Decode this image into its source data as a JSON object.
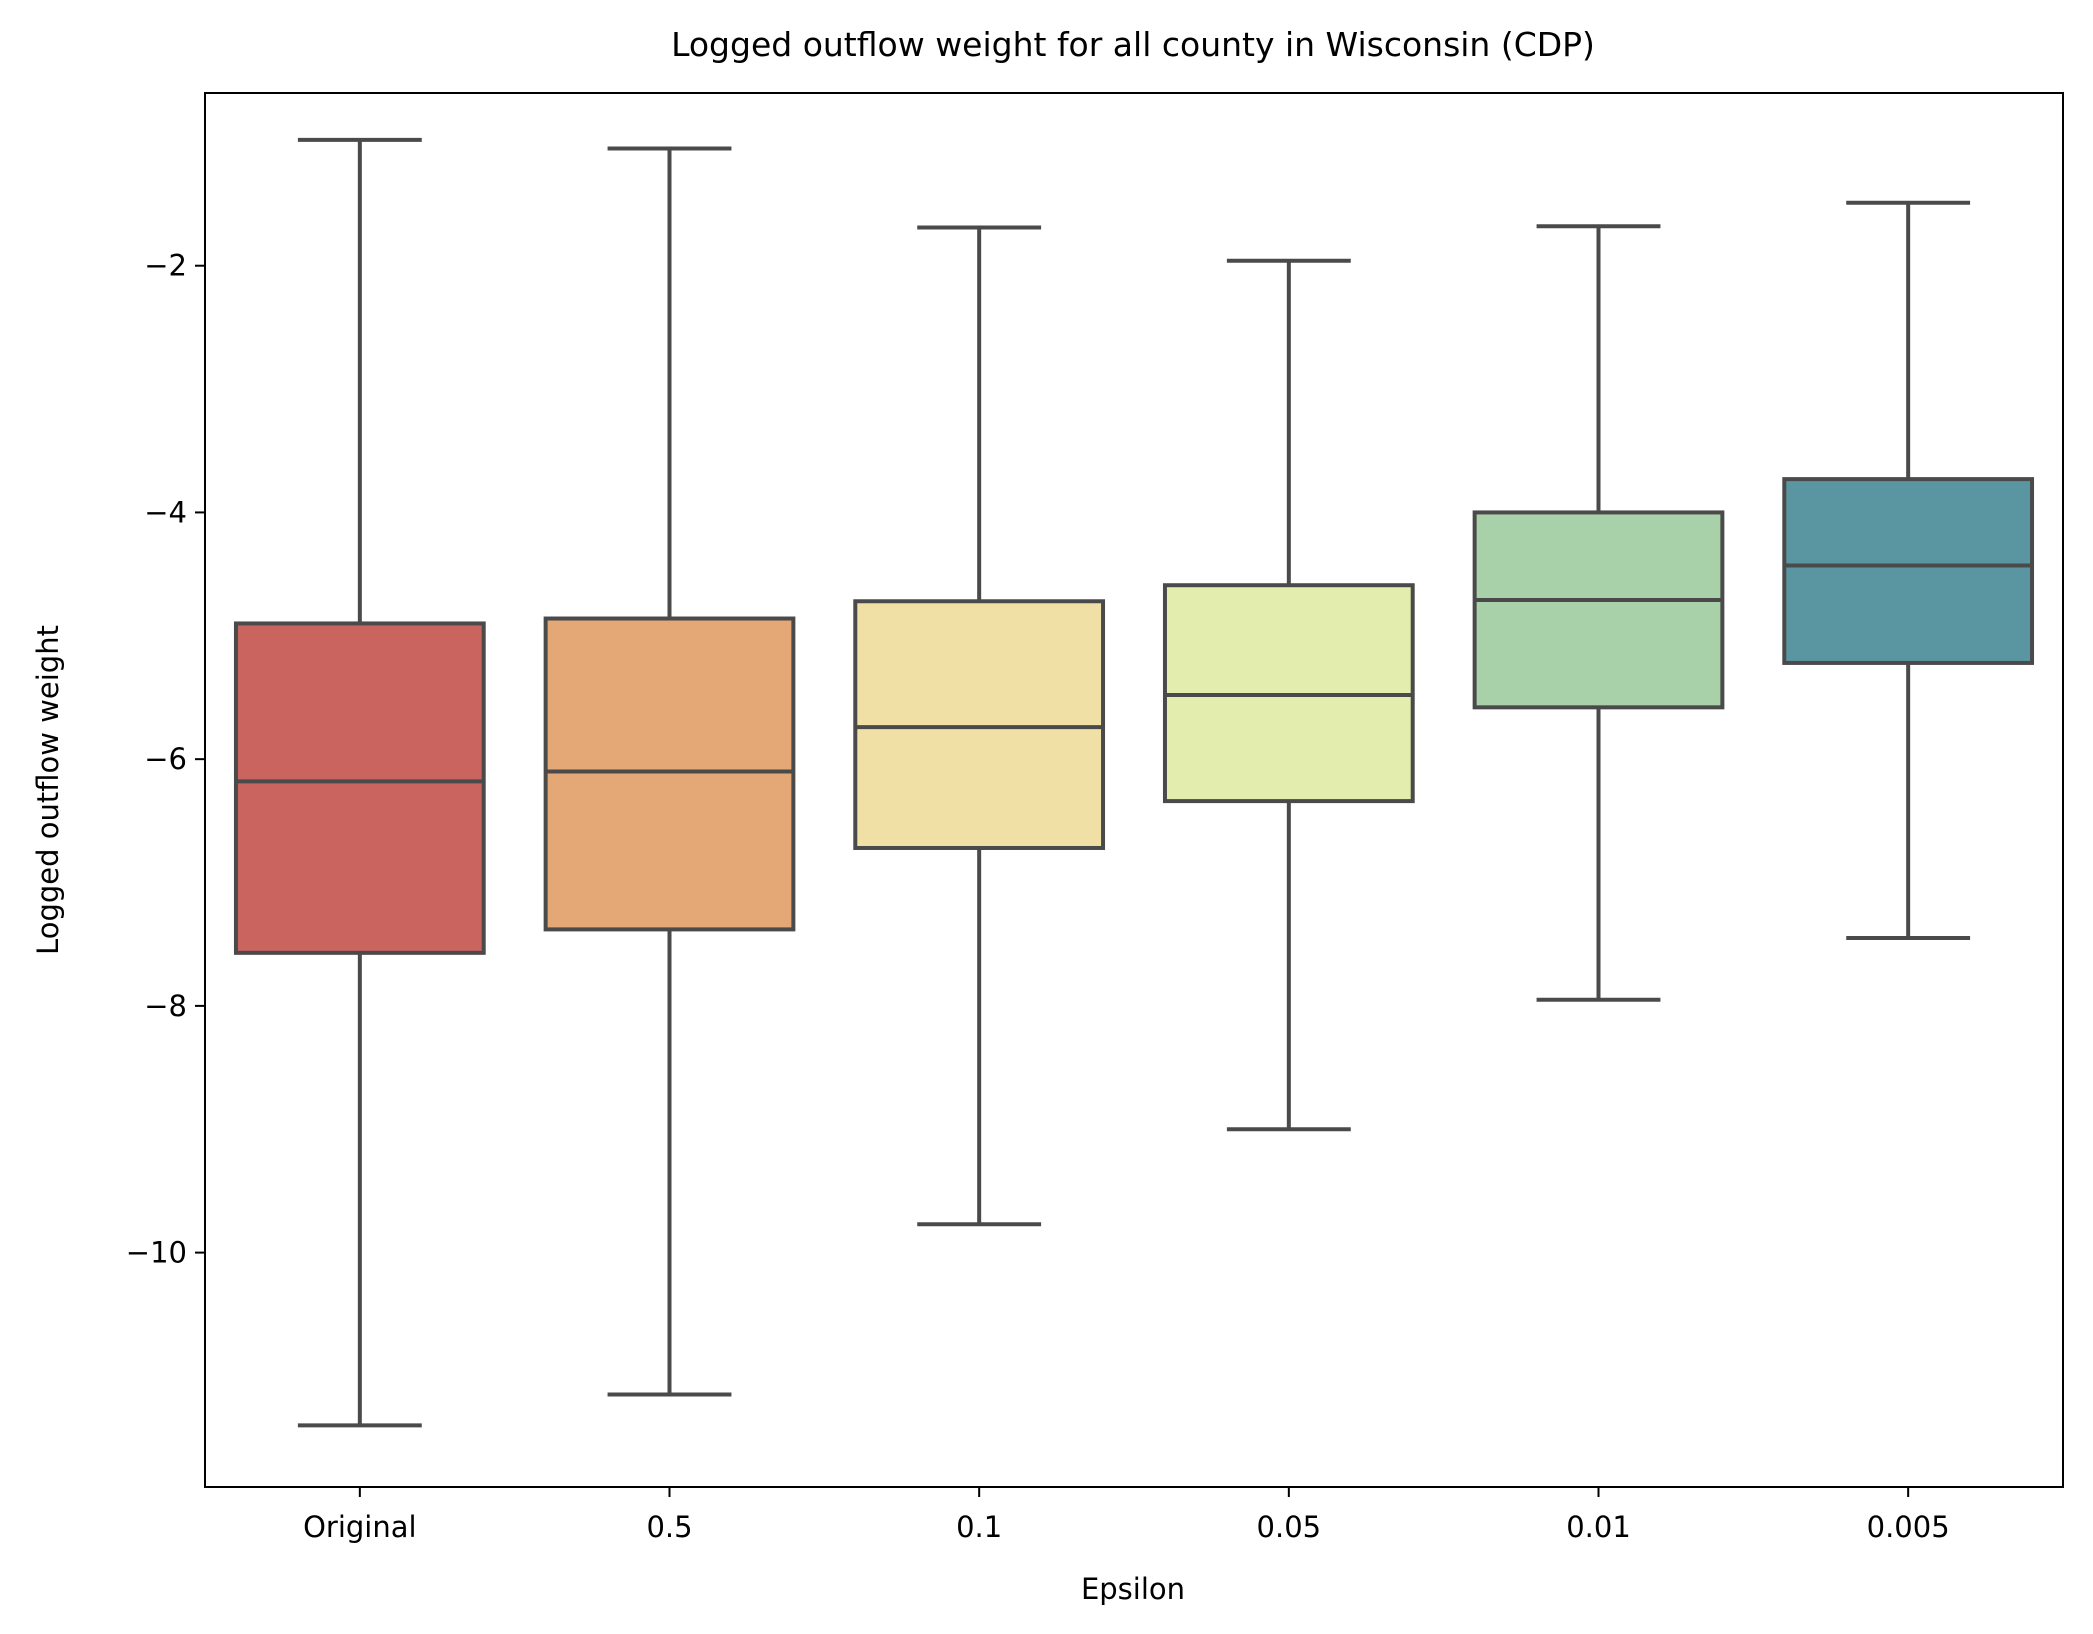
{
  "chart_data": {
    "type": "box",
    "title": "Logged outflow weight for all county in Wisconsin (CDP)",
    "xlabel": "Epsilon",
    "ylabel": "Logged outflow weight",
    "ylim": [
      -11.9,
      -0.6
    ],
    "yticks": [
      -10,
      -8,
      -6,
      -4,
      -2
    ],
    "grid": false,
    "categories": [
      "Original",
      "0.5",
      "0.1",
      "0.05",
      "0.01",
      "0.005"
    ],
    "boxes": [
      {
        "category": "Original",
        "whisker_low": -11.4,
        "q1": -7.57,
        "median": -6.18,
        "q3": -4.9,
        "whisker_high": -0.98,
        "color": "#c9645f"
      },
      {
        "category": "0.5",
        "whisker_low": -11.15,
        "q1": -7.38,
        "median": -6.1,
        "q3": -4.86,
        "whisker_high": -1.05,
        "color": "#e4a776"
      },
      {
        "category": "0.1",
        "whisker_low": -9.77,
        "q1": -6.72,
        "median": -5.74,
        "q3": -4.72,
        "whisker_high": -1.69,
        "color": "#f0e0a5"
      },
      {
        "category": "0.05",
        "whisker_low": -9.0,
        "q1": -6.34,
        "median": -5.48,
        "q3": -4.59,
        "whisker_high": -1.96,
        "color": "#e2edae"
      },
      {
        "category": "0.01",
        "whisker_low": -7.95,
        "q1": -5.58,
        "median": -4.71,
        "q3": -4.0,
        "whisker_high": -1.68,
        "color": "#a9d1a9"
      },
      {
        "category": "0.005",
        "whisker_low": -7.45,
        "q1": -5.22,
        "median": -4.43,
        "q3": -3.73,
        "whisker_high": -1.49,
        "color": "#5a96a2"
      }
    ]
  }
}
